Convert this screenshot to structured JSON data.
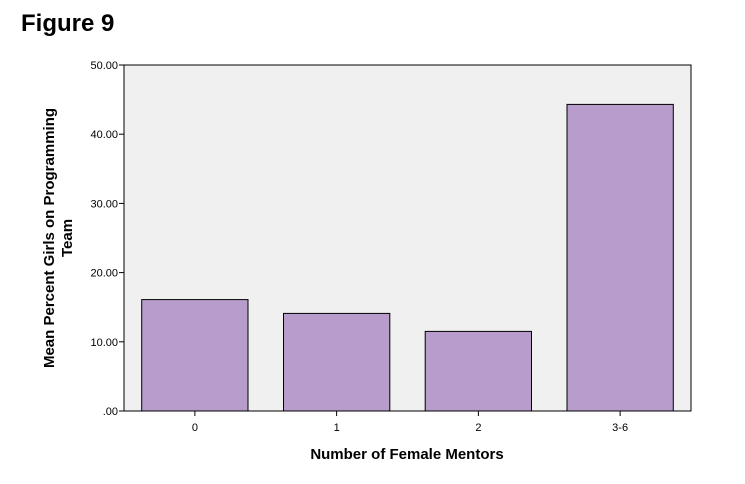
{
  "figure_label": "Figure 9",
  "chart_data": {
    "type": "bar",
    "categories": [
      "0",
      "1",
      "2",
      "3-6"
    ],
    "values": [
      16.1,
      14.1,
      11.5,
      44.3
    ],
    "xlabel": "Number of Female Mentors",
    "ylabel_lines": [
      "Mean Percent Girls on Programming",
      "Team"
    ],
    "ylim": [
      0,
      50
    ],
    "yticks": [
      0,
      10,
      20,
      30,
      40,
      50
    ],
    "ytick_labels": [
      ".00",
      "10.00",
      "20.00",
      "30.00",
      "40.00",
      "50.00"
    ],
    "grid": false,
    "legend": "none",
    "bar_color": "#b89ccb",
    "plot_background": "#f0f0f0"
  }
}
